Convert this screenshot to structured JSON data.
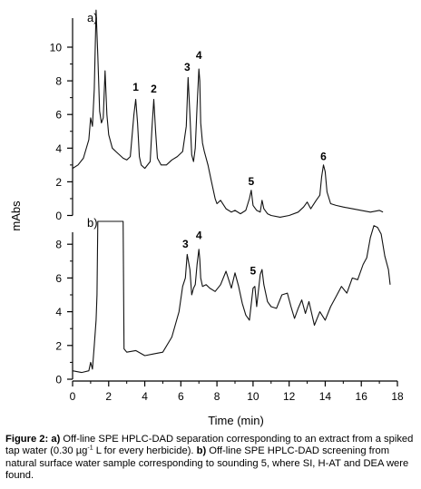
{
  "chart_data": [
    {
      "type": "line",
      "panel_label": "a)",
      "ylabel": "mAbs",
      "ylim": [
        0,
        10
      ],
      "y_ticks": [
        0,
        2,
        4,
        6,
        8,
        10
      ],
      "series": [
        {
          "x": [
            0.0,
            0.3,
            0.6,
            0.9,
            1.0,
            1.1,
            1.2,
            1.3,
            1.4,
            1.5,
            1.6,
            1.7,
            1.8,
            1.9,
            2.0,
            2.2,
            2.5,
            2.8,
            3.0,
            3.2,
            3.4,
            3.5,
            3.6,
            3.7,
            3.8,
            4.0,
            4.3,
            4.4,
            4.5,
            4.6,
            4.7,
            4.9,
            5.2,
            5.5,
            5.8,
            6.1,
            6.3,
            6.4,
            6.5,
            6.6,
            6.7,
            6.8,
            6.9,
            7.0,
            7.05,
            7.1,
            7.2,
            7.3,
            7.5,
            7.7,
            7.9,
            8.0,
            8.2,
            8.5,
            8.8,
            9.0,
            9.3,
            9.6,
            9.8,
            9.9,
            10.0,
            10.2,
            10.4,
            10.5,
            10.6,
            10.8,
            11.0,
            11.5,
            12.0,
            12.5,
            12.8,
            13.0,
            13.2,
            13.5,
            13.7,
            13.8,
            13.9,
            14.0,
            14.1,
            14.3,
            14.6,
            15.0,
            15.5,
            16.0,
            16.5,
            17.0,
            17.2
          ],
          "y": [
            2.8,
            3.0,
            3.4,
            4.5,
            5.8,
            5.3,
            7.5,
            12.2,
            9.5,
            6.2,
            5.5,
            5.8,
            8.6,
            6.0,
            4.8,
            4.0,
            3.7,
            3.4,
            3.3,
            3.5,
            6.0,
            6.9,
            5.5,
            3.5,
            3.0,
            2.8,
            3.2,
            5.2,
            6.9,
            5.0,
            3.4,
            3.0,
            3.0,
            3.3,
            3.5,
            3.8,
            5.3,
            8.2,
            6.0,
            3.6,
            3.2,
            4.0,
            6.5,
            8.7,
            8.0,
            5.5,
            4.3,
            3.8,
            3.0,
            2.0,
            1.0,
            0.7,
            0.9,
            0.4,
            0.2,
            0.3,
            0.1,
            0.3,
            1.0,
            1.5,
            0.6,
            0.3,
            0.2,
            0.9,
            0.4,
            0.1,
            0.0,
            -0.1,
            0.0,
            0.2,
            0.5,
            0.8,
            0.4,
            0.9,
            1.2,
            2.3,
            3.0,
            2.6,
            1.4,
            0.7,
            0.6,
            0.5,
            0.4,
            0.3,
            0.2,
            0.3,
            0.2
          ]
        }
      ],
      "annotations": [
        {
          "label": "1",
          "x": 3.5,
          "y": 7.4
        },
        {
          "label": "2",
          "x": 4.5,
          "y": 7.3
        },
        {
          "label": "3",
          "x": 6.35,
          "y": 8.6
        },
        {
          "label": "4",
          "x": 7.0,
          "y": 9.3
        },
        {
          "label": "5",
          "x": 9.9,
          "y": 1.8
        },
        {
          "label": "6",
          "x": 13.9,
          "y": 3.3
        }
      ]
    },
    {
      "type": "line",
      "panel_label": "b)",
      "xlabel": "Time (min)",
      "xlim": [
        0,
        18
      ],
      "x_ticks": [
        0,
        2,
        4,
        6,
        8,
        10,
        12,
        14,
        16,
        18
      ],
      "ylim": [
        0,
        10
      ],
      "y_ticks": [
        0,
        2,
        4,
        6,
        8
      ],
      "series": [
        {
          "x": [
            0.0,
            0.5,
            0.9,
            1.0,
            1.1,
            1.2,
            1.3,
            1.35,
            1.4,
            2.5,
            2.8,
            2.85,
            3.0,
            3.5,
            4.0,
            4.5,
            5.0,
            5.5,
            5.9,
            6.1,
            6.25,
            6.35,
            6.5,
            6.6,
            6.7,
            6.8,
            6.9,
            7.0,
            7.05,
            7.1,
            7.2,
            7.4,
            7.6,
            7.9,
            8.2,
            8.5,
            8.8,
            9.0,
            9.2,
            9.4,
            9.6,
            9.8,
            10.0,
            10.1,
            10.2,
            10.4,
            10.5,
            10.6,
            10.8,
            11.0,
            11.3,
            11.6,
            11.9,
            12.1,
            12.3,
            12.5,
            12.7,
            12.9,
            13.1,
            13.4,
            13.7,
            14.0,
            14.3,
            14.6,
            14.9,
            15.2,
            15.5,
            15.8,
            16.1,
            16.3,
            16.5,
            16.7,
            16.9,
            17.1,
            17.3,
            17.5,
            17.6
          ],
          "y": [
            0.5,
            0.4,
            0.5,
            1.0,
            0.6,
            2.0,
            3.5,
            5.0,
            9.4,
            9.4,
            9.4,
            1.8,
            1.6,
            1.7,
            1.4,
            1.5,
            1.6,
            2.5,
            4.0,
            5.5,
            6.0,
            7.4,
            6.5,
            5.0,
            5.4,
            5.6,
            6.8,
            7.7,
            7.1,
            6.0,
            5.5,
            5.6,
            5.4,
            5.2,
            5.6,
            6.4,
            5.4,
            6.3,
            5.5,
            4.5,
            3.8,
            3.5,
            5.4,
            5.5,
            4.3,
            6.2,
            6.5,
            5.6,
            4.6,
            4.3,
            4.2,
            5.0,
            5.1,
            4.3,
            3.6,
            4.2,
            4.7,
            3.9,
            4.6,
            3.2,
            4.0,
            3.5,
            4.3,
            4.9,
            5.5,
            5.1,
            6.0,
            5.9,
            6.8,
            7.2,
            8.4,
            9.1,
            9.0,
            8.6,
            7.3,
            6.5,
            5.6
          ]
        }
      ],
      "annotations": [
        {
          "label": "3",
          "x": 6.25,
          "y": 7.8
        },
        {
          "label": "4",
          "x": 7.0,
          "y": 8.3
        },
        {
          "label": "5",
          "x": 10.0,
          "y": 6.2
        }
      ]
    }
  ],
  "caption": {
    "lead": "Figure 2:",
    "a_label": "a)",
    "a_text_before_sup": " Off-line SPE HPLC-DAD separation corresponding to an extract from a spiked tap water (0.30 µg",
    "a_sup": "-1",
    "a_text_after_sup": " L for every herbicide). ",
    "b_label": "b)",
    "b_text": " Off-line SPE HPLC-DAD screening from natural surface water sample corresponding to sounding 5, where SI, H-AT and DEA were found."
  }
}
